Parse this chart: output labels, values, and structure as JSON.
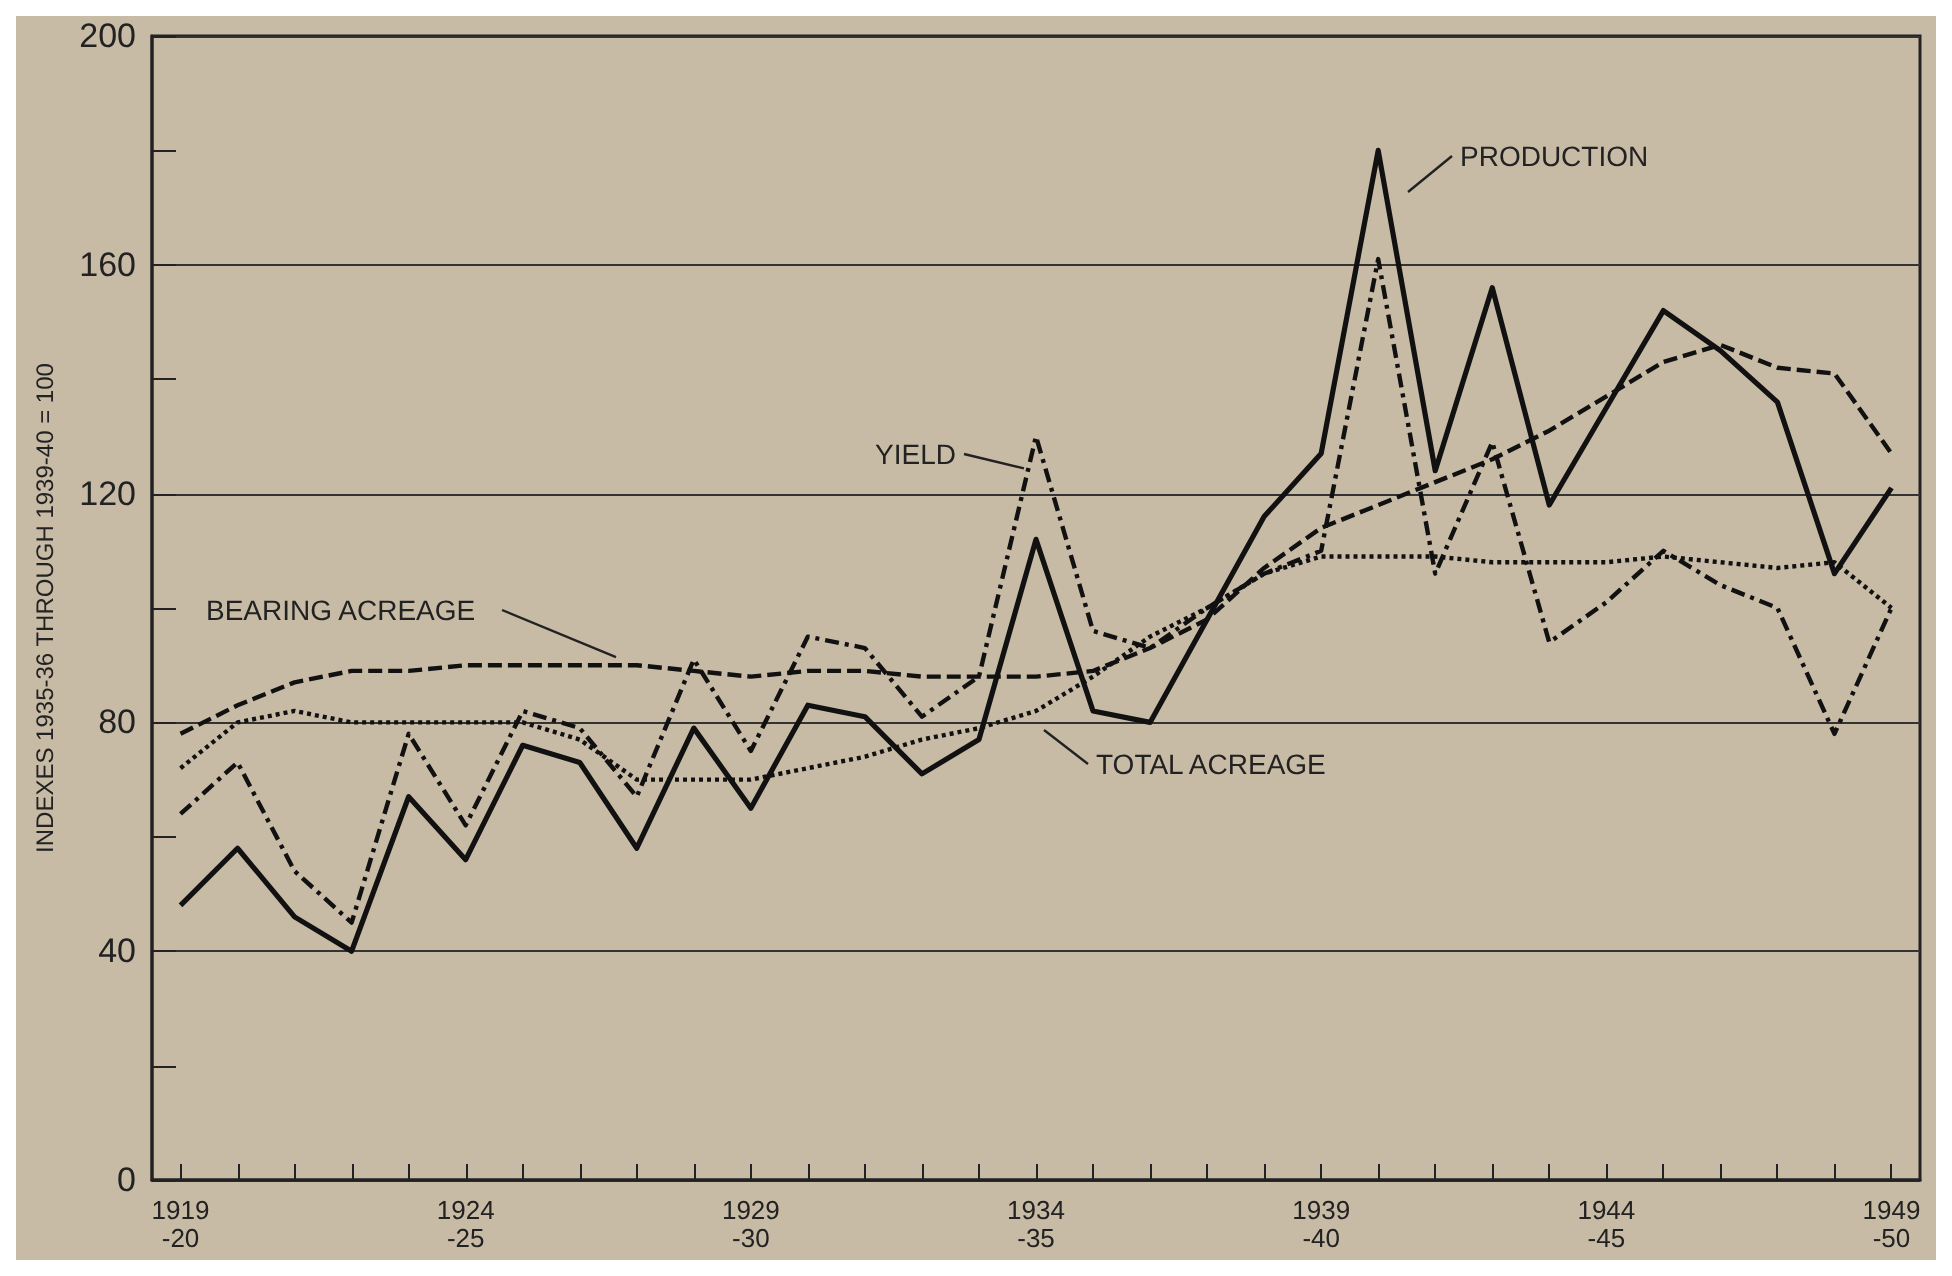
{
  "chart_data": {
    "type": "line",
    "ylabel": "INDEXES 1935-36 THROUGH 1939-40 = 100",
    "categories": [
      "1919\n-20",
      null,
      null,
      null,
      null,
      "1924\n-25",
      null,
      null,
      null,
      null,
      "1929\n-30",
      null,
      null,
      null,
      null,
      "1934\n-35",
      null,
      null,
      null,
      null,
      "1939\n-40",
      null,
      null,
      null,
      null,
      "1944\n-45",
      null,
      null,
      null,
      null,
      "1949\n-50"
    ],
    "ylim": [
      0,
      200
    ],
    "yticks": [
      0,
      {
        "value": 20,
        "label": null
      },
      40,
      {
        "value": 60,
        "label": null
      },
      80,
      {
        "value": 100,
        "label": null
      },
      120,
      {
        "value": 140,
        "label": null
      },
      160,
      {
        "value": 180,
        "label": null
      },
      200
    ],
    "grid": "y",
    "marker": "none",
    "series": [
      {
        "color": "#111111",
        "line_style": "solid",
        "values": [
          48,
          58,
          46,
          40,
          67,
          56,
          76,
          73,
          58,
          79,
          65,
          83,
          81,
          71,
          77,
          112,
          82,
          80,
          98,
          116,
          127,
          180,
          124,
          156,
          118,
          135,
          152,
          145,
          136,
          106,
          121
        ]
      },
      {
        "color": "#111111",
        "line_style": "dashdot",
        "values": [
          64,
          73,
          54,
          45,
          78,
          62,
          82,
          79,
          67,
          91,
          75,
          95,
          93,
          81,
          88,
          130,
          96,
          93,
          100,
          106,
          110,
          161,
          106,
          129,
          94,
          101,
          110,
          104,
          100,
          78,
          100
        ]
      },
      {
        "color": "#111111",
        "line_style": "dashed",
        "values": [
          78,
          83,
          87,
          89,
          89,
          90,
          90,
          90,
          90,
          89,
          88,
          89,
          89,
          88,
          88,
          88,
          89,
          93,
          98,
          107,
          114,
          118,
          122,
          126,
          131,
          137,
          143,
          146,
          142,
          141,
          127
        ]
      },
      {
        "color": "#111111",
        "line_style": "dotted",
        "values": [
          72,
          80,
          82,
          80,
          80,
          80,
          80,
          77,
          70,
          70,
          70,
          72,
          74,
          77,
          79,
          82,
          88,
          95,
          100,
          106,
          109,
          109,
          109,
          108,
          108,
          108,
          109,
          108,
          107,
          108,
          100
        ]
      }
    ],
    "annotations": [
      "PRODUCTION",
      {
        "text": "YIELD",
        "x": "1934\n-35",
        "y": 123
      },
      {
        "text": "BEARING ACREAGE",
        "y": 90
      },
      "TOTAL ACREAGE"
    ]
  }
}
